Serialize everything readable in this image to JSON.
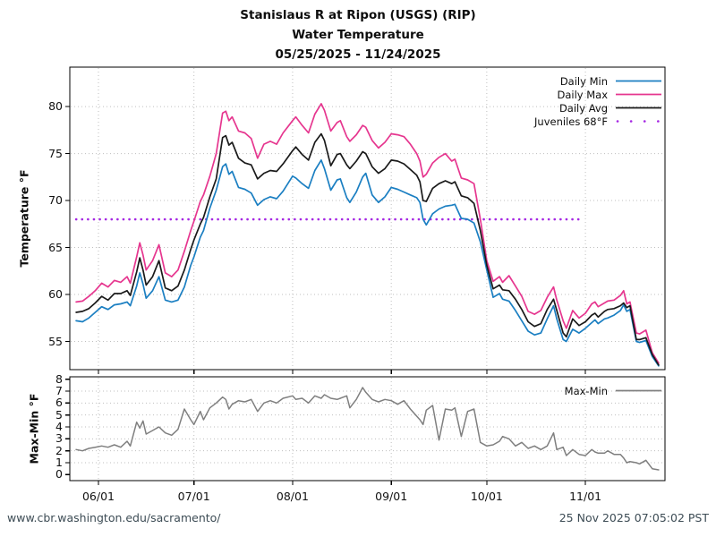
{
  "title": {
    "line1": "Stanislaus R at Ripon (USGS) (RIP)",
    "line2": "Water Temperature",
    "line3": "05/25/2025 - 11/24/2025"
  },
  "footer": {
    "site": "www.cbr.washington.edu/sacramento/",
    "timestamp": "25 Nov 2025 07:05:02 PST"
  },
  "colors": {
    "daily_min": "#1b7fc2",
    "daily_max": "#e6368f",
    "daily_avg": "#1a1a1a",
    "juveniles": "#a527e3",
    "max_min": "#7f7f7f",
    "grid": "#bfbfbf",
    "frame": "#000000",
    "footer_text": "#3d4c55"
  },
  "chart_data": [
    {
      "type": "line",
      "title": "Water Temperature",
      "ylabel": "Temperature °F",
      "ylim": [
        52,
        84.2
      ],
      "yticks": [
        55,
        60,
        65,
        70,
        75,
        80
      ],
      "grid": true,
      "legend_position": "top-right",
      "x_tick_labels": [
        "06/01",
        "07/01",
        "08/01",
        "09/01",
        "10/01",
        "11/01"
      ],
      "x_tick_days": [
        7,
        37,
        68,
        99,
        129,
        160
      ],
      "xlim_days": [
        -2,
        185
      ],
      "dates": [
        "05/25",
        "05/27",
        "05/29",
        "05/31",
        "06/02",
        "06/04",
        "06/06",
        "06/08",
        "06/10",
        "06/11",
        "06/13",
        "06/14",
        "06/15",
        "06/16",
        "06/18",
        "06/20",
        "06/22",
        "06/24",
        "06/26",
        "06/28",
        "06/30",
        "07/01",
        "07/03",
        "07/04",
        "07/06",
        "07/08",
        "07/10",
        "07/11",
        "07/12",
        "07/13",
        "07/15",
        "07/17",
        "07/19",
        "07/21",
        "07/23",
        "07/25",
        "07/27",
        "07/29",
        "08/01",
        "08/02",
        "08/04",
        "08/06",
        "08/08",
        "08/10",
        "08/11",
        "08/13",
        "08/15",
        "08/16",
        "08/18",
        "08/19",
        "08/21",
        "08/23",
        "08/24",
        "08/26",
        "08/28",
        "08/30",
        "09/01",
        "09/03",
        "09/05",
        "09/07",
        "09/09",
        "09/10",
        "09/11",
        "09/12",
        "09/14",
        "09/16",
        "09/18",
        "09/20",
        "09/21",
        "09/23",
        "09/25",
        "09/27",
        "09/29",
        "10/01",
        "10/03",
        "10/05",
        "10/06",
        "10/08",
        "10/10",
        "10/12",
        "10/14",
        "10/16",
        "10/18",
        "10/20",
        "10/22",
        "10/23",
        "10/25",
        "10/26",
        "10/28",
        "10/30",
        "11/01",
        "11/03",
        "11/04",
        "11/05",
        "11/07",
        "11/08",
        "11/10",
        "11/12",
        "11/13",
        "11/14",
        "11/15",
        "11/17",
        "11/18",
        "11/20",
        "11/22",
        "11/24"
      ],
      "days": [
        0,
        2,
        4,
        6,
        8,
        10,
        12,
        14,
        16,
        17,
        19,
        20,
        21,
        22,
        24,
        26,
        28,
        30,
        32,
        34,
        36,
        37,
        39,
        40,
        42,
        44,
        46,
        47,
        48,
        49,
        51,
        53,
        55,
        57,
        59,
        61,
        63,
        65,
        68,
        69,
        71,
        73,
        75,
        77,
        78,
        80,
        82,
        83,
        85,
        86,
        88,
        90,
        91,
        93,
        95,
        97,
        99,
        101,
        103,
        105,
        107,
        108,
        109,
        110,
        112,
        114,
        116,
        118,
        119,
        121,
        123,
        125,
        127,
        129,
        131,
        133,
        134,
        136,
        138,
        140,
        142,
        144,
        146,
        148,
        150,
        151,
        153,
        154,
        156,
        158,
        160,
        162,
        163,
        164,
        166,
        167,
        169,
        171,
        172,
        173,
        174,
        176,
        177,
        179,
        181,
        183
      ],
      "series": [
        {
          "name": "Daily Min",
          "color": "#1b7fc2",
          "values": [
            57.2,
            57.1,
            57.5,
            58.1,
            58.7,
            58.4,
            58.9,
            59.0,
            59.2,
            58.8,
            60.9,
            62.3,
            61.1,
            59.6,
            60.4,
            61.9,
            59.4,
            59.2,
            59.4,
            60.8,
            63.1,
            64.0,
            66.1,
            66.8,
            69.2,
            71.1,
            73.6,
            73.9,
            72.8,
            73.1,
            71.4,
            71.2,
            70.8,
            69.5,
            70.1,
            70.4,
            70.2,
            71.0,
            72.6,
            72.4,
            71.8,
            71.3,
            73.2,
            74.3,
            73.4,
            71.1,
            72.2,
            72.3,
            70.3,
            69.8,
            70.9,
            72.5,
            72.9,
            70.6,
            69.8,
            70.4,
            71.4,
            71.2,
            70.9,
            70.6,
            70.3,
            69.8,
            68.0,
            67.4,
            68.6,
            69.1,
            69.4,
            69.5,
            69.6,
            68.1,
            68.0,
            67.6,
            65.6,
            62.6,
            59.7,
            60.1,
            59.5,
            59.3,
            58.3,
            57.2,
            56.1,
            55.7,
            55.9,
            57.4,
            58.8,
            57.4,
            55.2,
            55.0,
            56.3,
            55.9,
            56.4,
            57.0,
            57.3,
            56.9,
            57.4,
            57.5,
            57.8,
            58.3,
            58.9,
            58.2,
            58.4,
            55.0,
            54.9,
            55.1,
            53.4,
            52.4
          ]
        },
        {
          "name": "Daily Max",
          "color": "#e6368f",
          "values": [
            59.2,
            59.3,
            59.8,
            60.4,
            61.2,
            60.8,
            61.5,
            61.3,
            61.9,
            61.2,
            64.0,
            65.5,
            64.2,
            62.6,
            63.6,
            65.3,
            62.3,
            61.9,
            62.6,
            64.6,
            66.8,
            67.8,
            69.9,
            70.6,
            72.6,
            75.0,
            79.3,
            79.5,
            78.5,
            78.9,
            77.4,
            77.2,
            76.6,
            74.5,
            76.0,
            76.3,
            76.0,
            77.2,
            78.5,
            78.9,
            78.0,
            77.2,
            79.2,
            80.3,
            79.6,
            77.4,
            78.3,
            78.5,
            76.8,
            76.3,
            77.0,
            78.0,
            77.8,
            76.4,
            75.6,
            76.2,
            77.1,
            77.0,
            76.8,
            76.0,
            75.0,
            74.2,
            72.5,
            72.8,
            74.0,
            74.6,
            75.0,
            74.2,
            74.4,
            72.4,
            72.2,
            71.8,
            68.0,
            63.6,
            61.4,
            61.9,
            61.3,
            62.0,
            60.9,
            59.8,
            58.2,
            57.9,
            58.3,
            59.7,
            60.8,
            59.4,
            57.2,
            56.4,
            58.3,
            57.5,
            58.0,
            59.0,
            59.2,
            58.7,
            59.1,
            59.3,
            59.4,
            59.9,
            60.4,
            59.0,
            59.2,
            55.9,
            55.8,
            56.2,
            53.8,
            52.7
          ]
        },
        {
          "name": "Daily Avg",
          "color": "#1a1a1a",
          "values": [
            58.1,
            58.2,
            58.5,
            59.1,
            59.8,
            59.4,
            60.1,
            60.1,
            60.4,
            59.9,
            62.4,
            63.9,
            62.6,
            61.0,
            61.9,
            63.6,
            60.7,
            60.4,
            60.9,
            62.6,
            64.8,
            65.8,
            67.5,
            68.2,
            70.4,
            72.3,
            76.7,
            76.9,
            75.9,
            76.2,
            74.5,
            74.0,
            73.8,
            72.3,
            72.9,
            73.2,
            73.1,
            73.9,
            75.3,
            75.7,
            74.9,
            74.3,
            76.2,
            77.1,
            76.4,
            73.7,
            74.9,
            75.0,
            73.8,
            73.4,
            74.2,
            75.2,
            75.0,
            73.6,
            72.9,
            73.4,
            74.3,
            74.2,
            73.9,
            73.3,
            72.7,
            72.0,
            70.0,
            69.9,
            71.3,
            71.8,
            72.1,
            71.8,
            72.0,
            70.5,
            70.3,
            69.7,
            66.8,
            63.1,
            60.6,
            61.0,
            60.5,
            60.4,
            59.5,
            58.4,
            57.1,
            56.6,
            56.9,
            58.4,
            59.5,
            58.3,
            55.9,
            55.5,
            57.4,
            56.7,
            57.1,
            57.8,
            58.0,
            57.6,
            58.2,
            58.4,
            58.5,
            58.8,
            59.1,
            58.6,
            58.8,
            55.2,
            55.2,
            55.4,
            53.6,
            52.5
          ]
        }
      ],
      "threshold": {
        "name": "Juveniles 68°F",
        "color": "#a527e3",
        "value": 68,
        "start_day": 0,
        "end_day": 159,
        "style": "dotted"
      }
    },
    {
      "type": "line",
      "ylabel": "Max-Min °F",
      "ylim": [
        -0.5,
        8.2
      ],
      "yticks": [
        0,
        1,
        2,
        3,
        4,
        5,
        6,
        7,
        8
      ],
      "grid": true,
      "legend_position": "top-right",
      "shares_x_with_chart": 0,
      "series": [
        {
          "name": "Max-Min",
          "color": "#7f7f7f",
          "values": [
            2.1,
            2.0,
            2.2,
            2.3,
            2.4,
            2.3,
            2.5,
            2.3,
            2.8,
            2.4,
            4.4,
            3.9,
            4.5,
            3.4,
            3.7,
            4.0,
            3.5,
            3.3,
            3.8,
            5.5,
            4.6,
            4.2,
            5.3,
            4.6,
            5.6,
            6.0,
            6.5,
            6.3,
            5.5,
            5.9,
            6.2,
            6.1,
            6.3,
            5.3,
            6.0,
            6.2,
            6.0,
            6.4,
            6.6,
            6.3,
            6.4,
            6.0,
            6.6,
            6.4,
            6.7,
            6.4,
            6.3,
            6.4,
            6.6,
            5.6,
            6.3,
            7.3,
            6.9,
            6.3,
            6.1,
            6.3,
            6.2,
            5.9,
            6.2,
            5.5,
            4.9,
            4.6,
            4.2,
            5.4,
            5.8,
            2.9,
            5.5,
            5.4,
            5.6,
            3.2,
            5.3,
            5.5,
            2.7,
            2.4,
            2.5,
            2.8,
            3.2,
            3.0,
            2.4,
            2.7,
            2.2,
            2.4,
            2.1,
            2.4,
            3.5,
            2.1,
            2.3,
            1.6,
            2.1,
            1.7,
            1.6,
            2.1,
            1.9,
            1.8,
            1.8,
            2.0,
            1.7,
            1.7,
            1.4,
            1.0,
            1.1,
            1.0,
            0.9,
            1.2,
            0.5,
            0.4
          ]
        }
      ]
    }
  ]
}
